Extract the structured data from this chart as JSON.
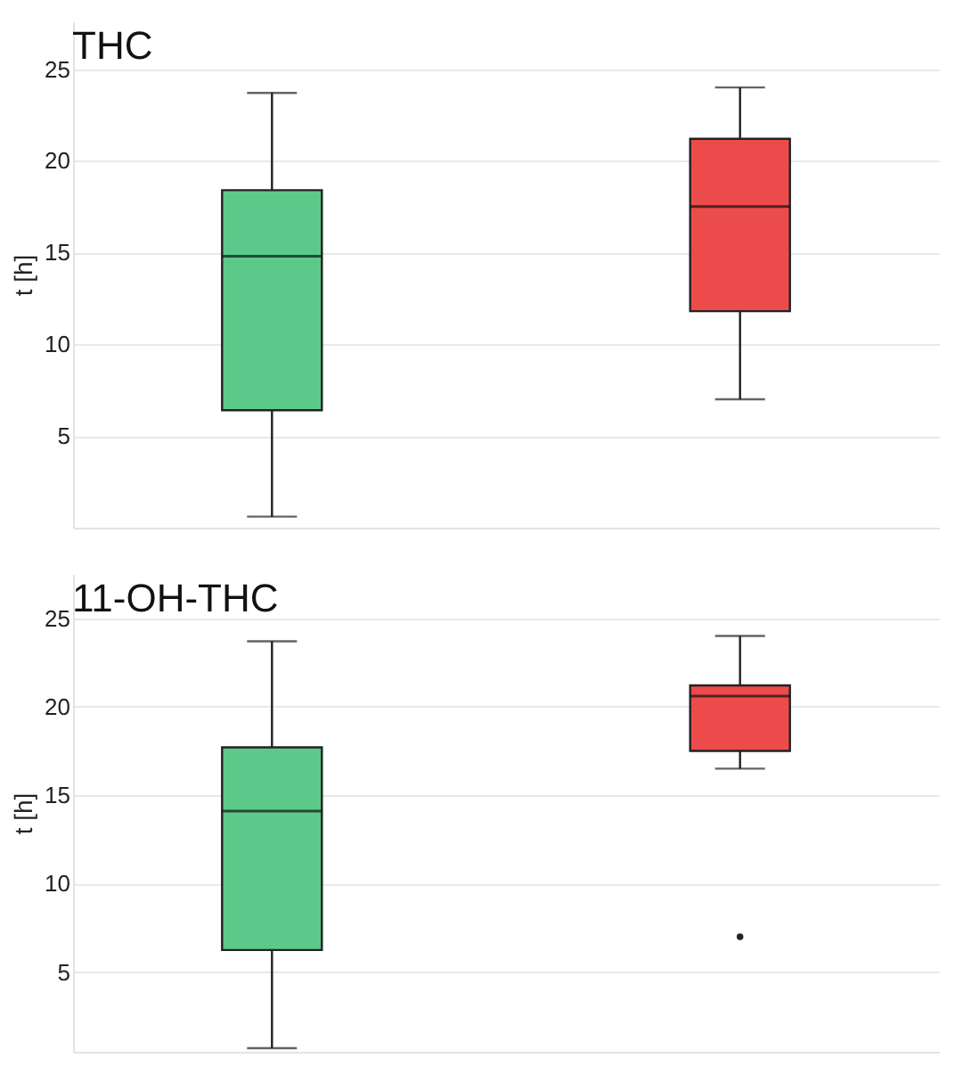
{
  "chart_data": [
    {
      "type": "box",
      "title": "THC",
      "ylabel": "t [h]",
      "categories": [
        null,
        null
      ],
      "colors": [
        "#5cc98a",
        "#ec4b4b"
      ],
      "ylim": [
        0,
        27.6
      ],
      "yticks": [
        5,
        10,
        15,
        20,
        25
      ],
      "grid": "y",
      "tick_labels": "y",
      "boxes": [
        {
          "low": 0.6,
          "q1": 6.4,
          "median": 14.8,
          "q3": 18.4,
          "high": 23.7
        },
        {
          "low": 7.0,
          "q1": 11.8,
          "median": 17.5,
          "q3": 21.2,
          "high": 24.0
        }
      ]
    },
    {
      "type": "box",
      "title": "11-OH-THC",
      "ylabel": "t [h]",
      "categories": [
        null,
        null
      ],
      "colors": [
        "#5cc98a",
        "#ec4b4b"
      ],
      "ylim": [
        0.5,
        27.5
      ],
      "yticks": [
        5,
        10,
        15,
        20,
        25
      ],
      "grid": "y",
      "tick_labels": "y",
      "boxes": [
        {
          "low": 0.7,
          "q1": 6.25,
          "median": 14.1,
          "q3": 17.7,
          "high": 23.7
        },
        {
          "low": 16.5,
          "q1": 17.5,
          "median": 20.6,
          "q3": 21.2,
          "high": 24.0,
          "outliers": [
            7.0
          ]
        }
      ]
    }
  ]
}
